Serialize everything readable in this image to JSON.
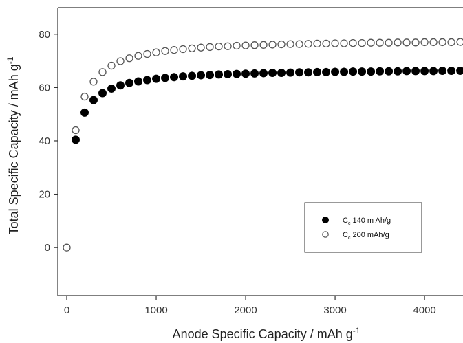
{
  "chart_data": {
    "type": "scatter",
    "title": "",
    "xlabel": "Anode Specific Capacity / mAh g",
    "xlabel_sup": "-1",
    "ylabel": "Total Specific Capacity / mAh g",
    "ylabel_sup": "-1",
    "xlim": [
      -100,
      4430
    ],
    "ylim": [
      -18,
      90
    ],
    "xticks": [
      0,
      1000,
      2000,
      3000,
      4000
    ],
    "yticks": [
      0,
      20,
      40,
      60,
      80
    ],
    "grid": false,
    "legend_position": "lower-right",
    "series": [
      {
        "name_prefix": "C",
        "name_sub": "c",
        "name_rest": " 140 m Ah/g",
        "marker": "filled-circle",
        "color": "#000000",
        "x": [
          100,
          200,
          300,
          400,
          500,
          600,
          700,
          800,
          900,
          1000,
          1100,
          1200,
          1300,
          1400,
          1500,
          1600,
          1700,
          1800,
          1900,
          2000,
          2100,
          2200,
          2300,
          2400,
          2500,
          2600,
          2700,
          2800,
          2900,
          3000,
          3100,
          3200,
          3300,
          3400,
          3500,
          3600,
          3700,
          3800,
          3900,
          4000,
          4100,
          4200,
          4300,
          4400
        ],
        "y": [
          40.4,
          50.6,
          55.3,
          57.9,
          59.6,
          60.8,
          61.7,
          62.3,
          62.8,
          63.3,
          63.6,
          63.9,
          64.2,
          64.4,
          64.6,
          64.7,
          64.9,
          65.0,
          65.1,
          65.2,
          65.3,
          65.4,
          65.5,
          65.5,
          65.6,
          65.7,
          65.7,
          65.8,
          65.8,
          65.9,
          65.9,
          66.0,
          66.0,
          66.0,
          66.1,
          66.1,
          66.1,
          66.2,
          66.2,
          66.2,
          66.2,
          66.3,
          66.3,
          66.3
        ]
      },
      {
        "name_prefix": "C",
        "name_sub": "c",
        "name_rest": " 200 mAh/g",
        "marker": "open-circle",
        "color": "#555555",
        "x": [
          0,
          100,
          200,
          300,
          400,
          500,
          600,
          700,
          800,
          900,
          1000,
          1100,
          1200,
          1300,
          1400,
          1500,
          1600,
          1700,
          1800,
          1900,
          2000,
          2100,
          2200,
          2300,
          2400,
          2500,
          2600,
          2700,
          2800,
          2900,
          3000,
          3100,
          3200,
          3300,
          3400,
          3500,
          3600,
          3700,
          3800,
          3900,
          4000,
          4100,
          4200,
          4300,
          4400
        ],
        "y": [
          0,
          44.0,
          56.6,
          62.2,
          65.8,
          68.2,
          69.9,
          71.0,
          71.9,
          72.6,
          73.2,
          73.7,
          74.1,
          74.4,
          74.7,
          75.0,
          75.2,
          75.4,
          75.5,
          75.7,
          75.8,
          75.9,
          76.0,
          76.1,
          76.2,
          76.3,
          76.3,
          76.4,
          76.5,
          76.5,
          76.6,
          76.6,
          76.7,
          76.7,
          76.8,
          76.8,
          76.8,
          76.9,
          76.9,
          76.9,
          77.0,
          77.0,
          77.0,
          77.0,
          77.1
        ]
      }
    ]
  }
}
